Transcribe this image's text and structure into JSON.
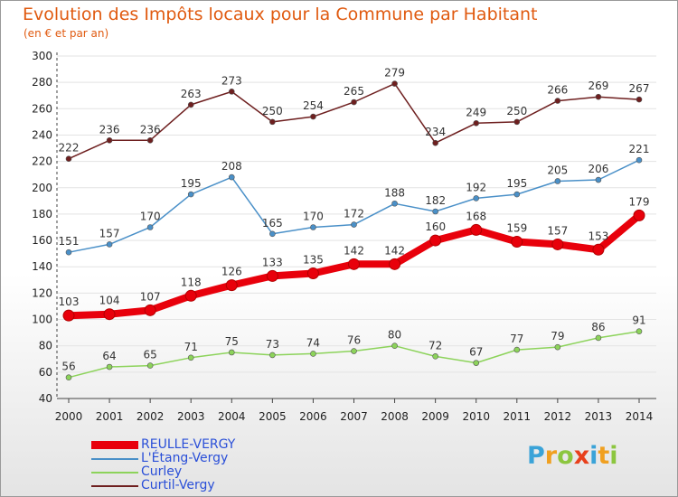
{
  "title": "Evolution des Impôts locaux pour la Commune par Habitant",
  "subtitle": "(en € et par an)",
  "logo": {
    "letters": [
      {
        "ch": "P",
        "color": "#3aa3d8"
      },
      {
        "ch": "r",
        "color": "#f0a020"
      },
      {
        "ch": "o",
        "color": "#8cc63f"
      },
      {
        "ch": "x",
        "color": "#e8401c"
      },
      {
        "ch": "i",
        "color": "#3aa3d8"
      },
      {
        "ch": "t",
        "color": "#f0a020"
      },
      {
        "ch": "i",
        "color": "#8cc63f"
      }
    ]
  },
  "chart_data": {
    "type": "line",
    "title": "Evolution des Impôts locaux pour la Commune par Habitant",
    "subtitle": "(en € et par an)",
    "xlabel": "",
    "ylabel": "",
    "categories": [
      "2000",
      "2001",
      "2002",
      "2003",
      "2004",
      "2005",
      "2006",
      "2007",
      "2008",
      "2009",
      "2010",
      "2011",
      "2012",
      "2013",
      "2014"
    ],
    "ylim": [
      40,
      300
    ],
    "yticks": [
      40,
      60,
      80,
      100,
      120,
      140,
      160,
      180,
      200,
      220,
      240,
      260,
      280,
      300
    ],
    "grid": "horizontal",
    "legend_position": "bottom-left",
    "series": [
      {
        "name": "REULLE-VERGY",
        "color": "#e8000b",
        "emphasis": true,
        "values": [
          103,
          104,
          107,
          118,
          126,
          133,
          135,
          142,
          142,
          160,
          168,
          159,
          157,
          153,
          179
        ]
      },
      {
        "name": "L'Étang-Vergy",
        "color": "#4a90c8",
        "emphasis": false,
        "values": [
          151,
          157,
          170,
          195,
          208,
          165,
          170,
          172,
          188,
          182,
          192,
          195,
          205,
          206,
          221
        ]
      },
      {
        "name": "Curley",
        "color": "#8cd35a",
        "emphasis": false,
        "values": [
          56,
          64,
          65,
          71,
          75,
          73,
          74,
          76,
          80,
          72,
          67,
          77,
          79,
          86,
          91
        ]
      },
      {
        "name": "Curtil-Vergy",
        "color": "#6e1f1f",
        "emphasis": false,
        "values": [
          222,
          236,
          236,
          263,
          273,
          250,
          254,
          265,
          279,
          234,
          249,
          250,
          266,
          269,
          267
        ]
      }
    ]
  }
}
